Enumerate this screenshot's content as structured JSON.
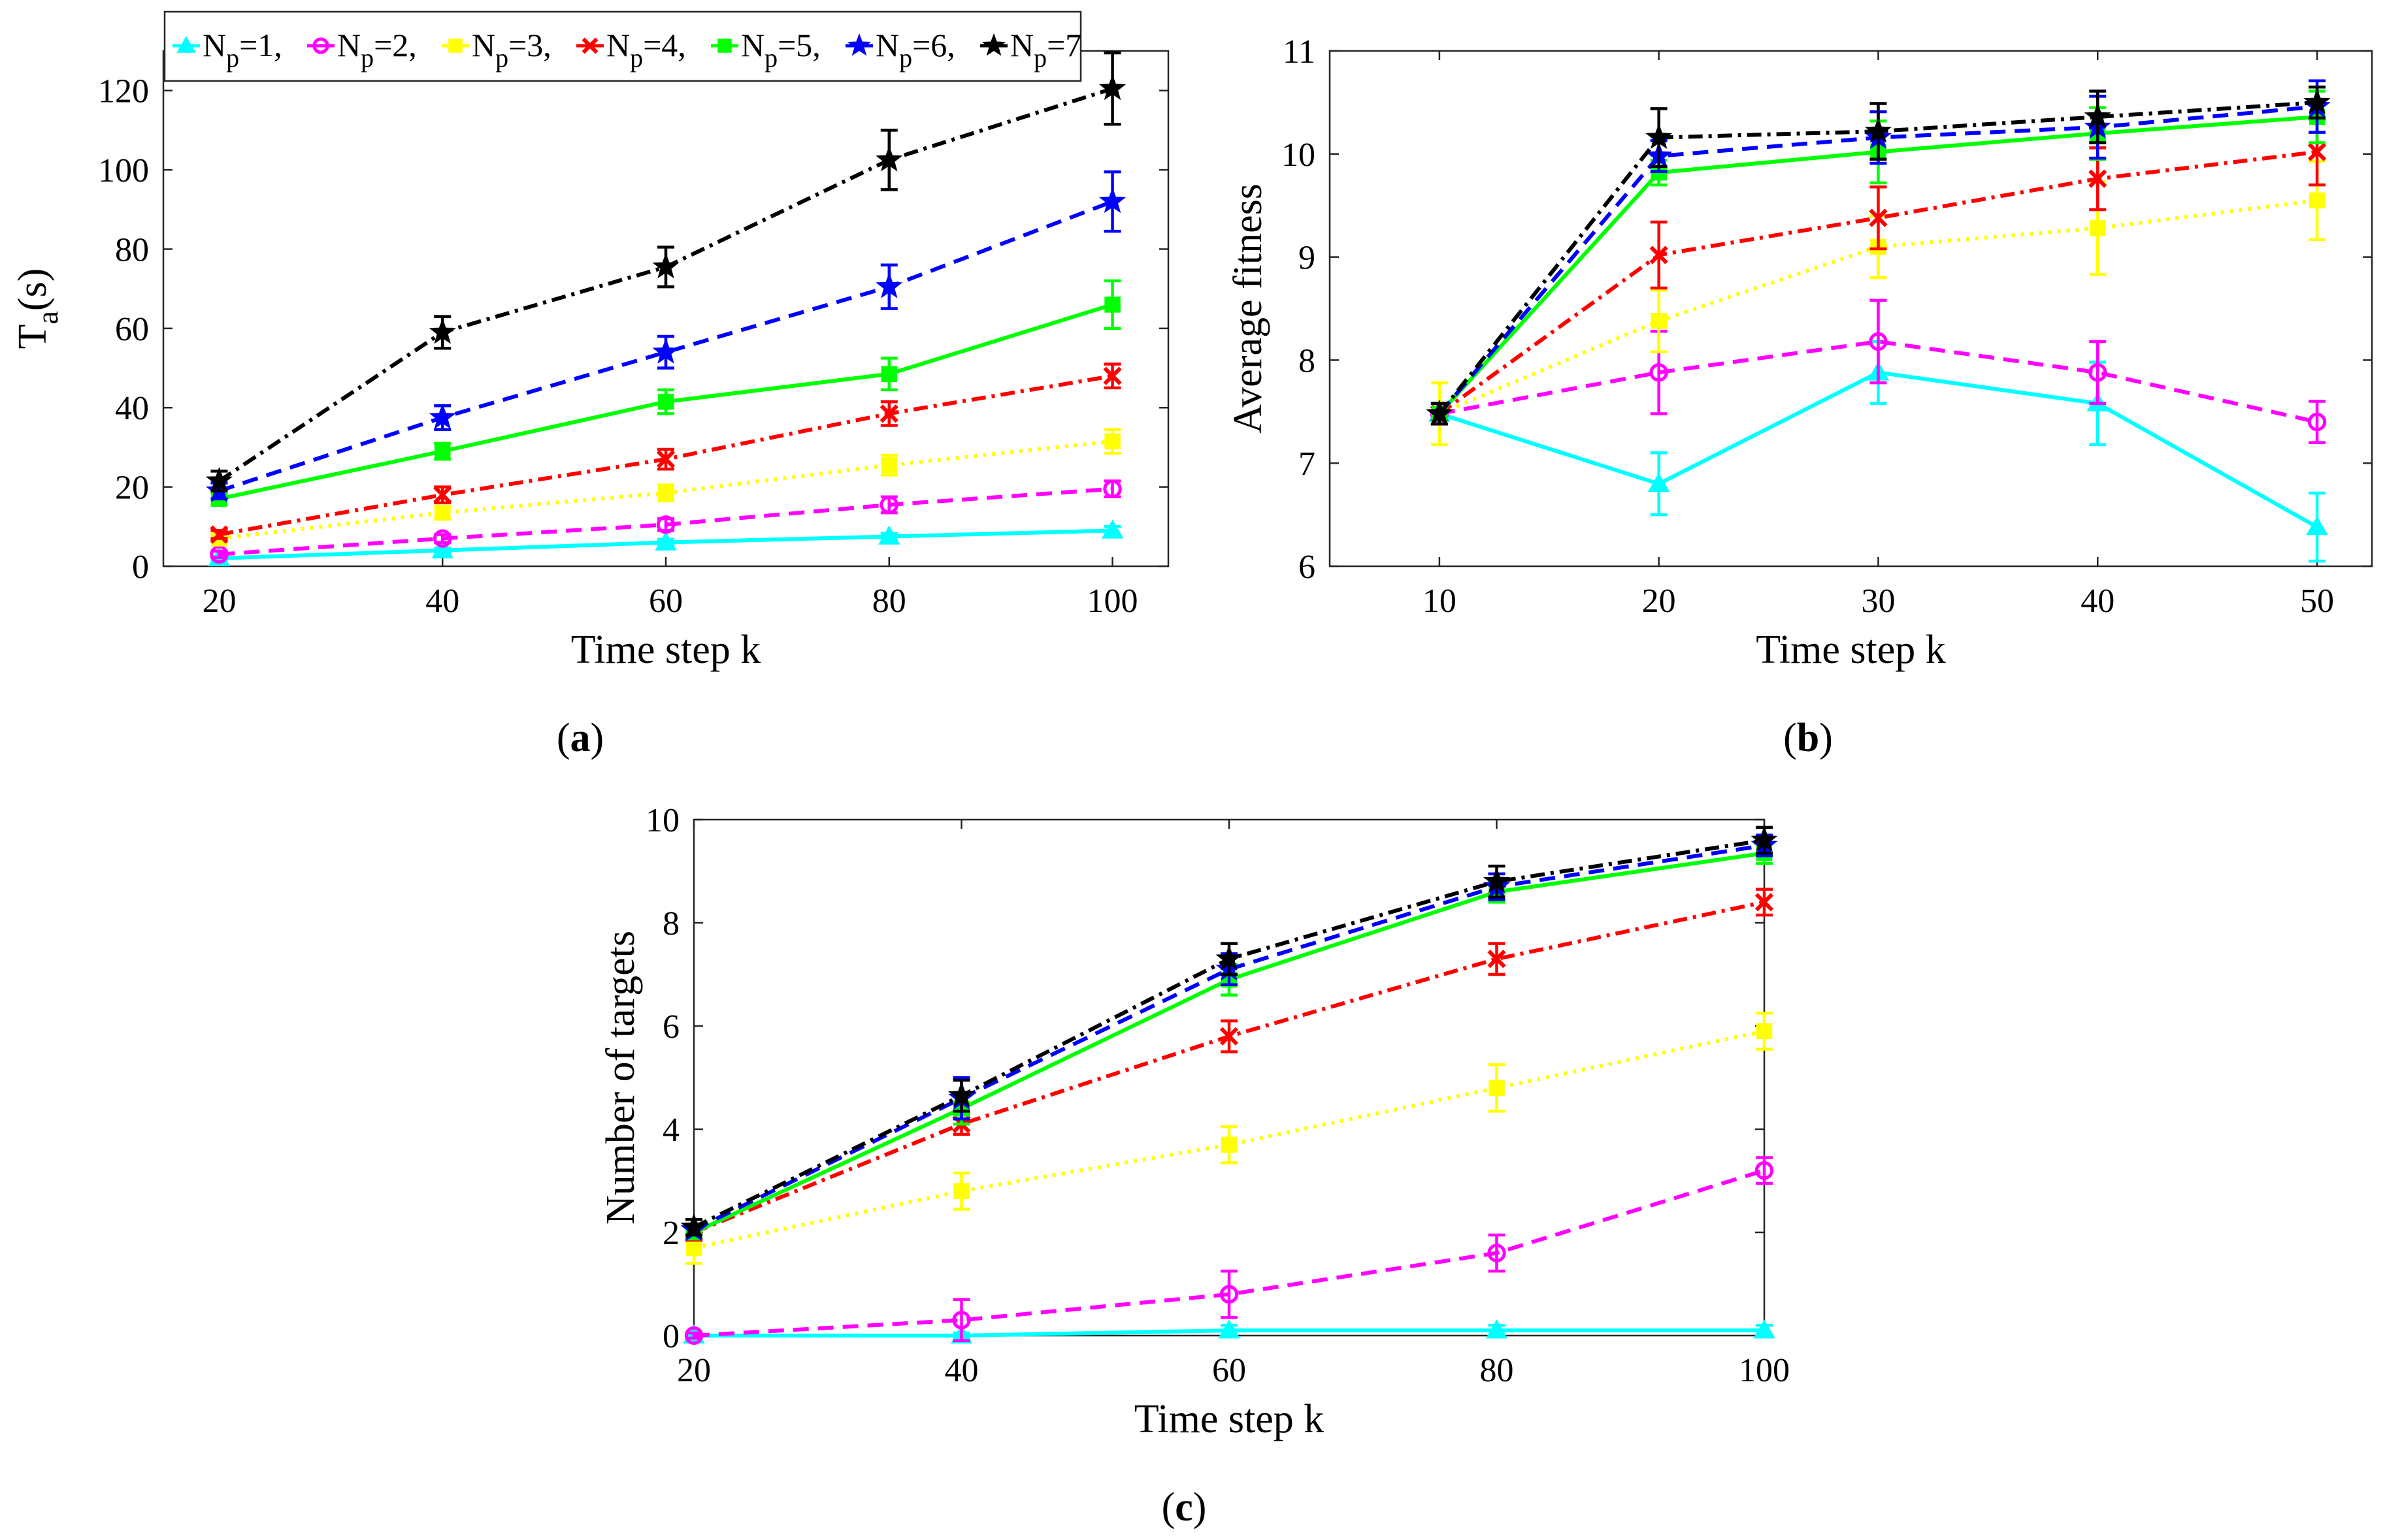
{
  "legend": {
    "entries": [
      {
        "key": "p1",
        "text": "N",
        "sub": "p",
        "suffix": "=1,"
      },
      {
        "key": "p2",
        "text": "N",
        "sub": "p",
        "suffix": "=2,"
      },
      {
        "key": "p3",
        "text": "N",
        "sub": "p",
        "suffix": "=3,"
      },
      {
        "key": "p4",
        "text": "N",
        "sub": "p",
        "suffix": "=4,"
      },
      {
        "key": "p5",
        "text": "N",
        "sub": "p",
        "suffix": "=5,"
      },
      {
        "key": "p6",
        "text": "N",
        "sub": "p",
        "suffix": "=6,"
      },
      {
        "key": "p7",
        "text": "N",
        "sub": "p",
        "suffix": "=7"
      }
    ]
  },
  "styles": {
    "p1": {
      "color": "#00FFFF",
      "dash": "",
      "marker": "triangle"
    },
    "p2": {
      "color": "#FF00FF",
      "dash": "24 14",
      "marker": "circle"
    },
    "p3": {
      "color": "#FFFF00",
      "dash": "5 9",
      "marker": "square"
    },
    "p4": {
      "color": "#FF0000",
      "dash": "22 9 5 9",
      "marker": "x-mark"
    },
    "p5": {
      "color": "#00FF00",
      "dash": "",
      "marker": "square"
    },
    "p6": {
      "color": "#0000FF",
      "dash": "24 14",
      "marker": "star"
    },
    "p7": {
      "color": "#000000",
      "dash": "22 9 5 9",
      "marker": "star"
    }
  },
  "chart_data": [
    {
      "id": "a",
      "type": "line",
      "caption_letter": "a",
      "xlabel": "Time step k",
      "ylabel_main": "T",
      "ylabel_sub": "a",
      "ylabel_suffix": "(s)",
      "xlim": [
        15,
        105
      ],
      "ylim": [
        0,
        130
      ],
      "xticks": [
        20,
        40,
        60,
        80,
        100
      ],
      "yticks": [
        0,
        20,
        40,
        60,
        80,
        100,
        120
      ],
      "x": [
        20,
        40,
        60,
        80,
        100
      ],
      "series": [
        {
          "key": "p1",
          "name": "Np=1",
          "values": [
            2,
            4,
            6,
            7.5,
            9
          ],
          "err": [
            0.5,
            0.6,
            0.8,
            0.8,
            1
          ]
        },
        {
          "key": "p2",
          "name": "Np=2",
          "values": [
            3,
            7,
            10.5,
            15.5,
            19.5
          ],
          "err": [
            0.8,
            1,
            1.5,
            2,
            2
          ]
        },
        {
          "key": "p3",
          "name": "Np=3",
          "values": [
            7,
            13.5,
            18.5,
            25.5,
            31.5
          ],
          "err": [
            1,
            1.5,
            2,
            2.5,
            3
          ]
        },
        {
          "key": "p4",
          "name": "Np=4",
          "values": [
            8,
            18,
            27,
            38.5,
            48
          ],
          "err": [
            1,
            2,
            2.5,
            3,
            3
          ]
        },
        {
          "key": "p5",
          "name": "Np=5",
          "values": [
            17,
            29,
            41.5,
            48.5,
            66
          ],
          "err": [
            1.5,
            2,
            3,
            4,
            6
          ]
        },
        {
          "key": "p6",
          "name": "Np=6",
          "values": [
            19,
            37.5,
            54,
            70.5,
            92
          ],
          "err": [
            2,
            3,
            4,
            5.5,
            7.5
          ]
        },
        {
          "key": "p7",
          "name": "Np=7",
          "values": [
            21.5,
            59,
            75.5,
            102.5,
            120.5
          ],
          "err": [
            2.5,
            4,
            5,
            7.5,
            9
          ]
        }
      ]
    },
    {
      "id": "b",
      "type": "line",
      "caption_letter": "b",
      "xlabel": "Time step k",
      "ylabel_main": "Average fitness",
      "ylabel_sub": "",
      "ylabel_suffix": "",
      "xlim": [
        5,
        52.5
      ],
      "ylim": [
        6,
        11
      ],
      "xticks": [
        10,
        20,
        30,
        40,
        50
      ],
      "yticks": [
        6,
        7,
        8,
        9,
        10,
        11
      ],
      "x": [
        10,
        20,
        30,
        40,
        50
      ],
      "series": [
        {
          "key": "p1",
          "name": "Np=1",
          "values": [
            7.48,
            6.8,
            7.88,
            7.58,
            6.38
          ],
          "err": [
            0.1,
            0.3,
            0.3,
            0.4,
            0.33
          ]
        },
        {
          "key": "p2",
          "name": "Np=2",
          "values": [
            7.48,
            7.88,
            8.18,
            7.88,
            7.4
          ],
          "err": [
            0.1,
            0.4,
            0.4,
            0.3,
            0.2
          ]
        },
        {
          "key": "p3",
          "name": "Np=3",
          "values": [
            7.48,
            8.38,
            9.1,
            9.28,
            9.55
          ],
          "err": [
            0.3,
            0.3,
            0.3,
            0.45,
            0.38
          ]
        },
        {
          "key": "p4",
          "name": "Np=4",
          "values": [
            7.48,
            9.02,
            9.38,
            9.76,
            10.02
          ],
          "err": [
            0.1,
            0.32,
            0.3,
            0.3,
            0.32
          ]
        },
        {
          "key": "p5",
          "name": "Np=5",
          "values": [
            7.48,
            9.82,
            10.02,
            10.2,
            10.36
          ],
          "err": [
            0.1,
            0.12,
            0.3,
            0.25,
            0.25
          ]
        },
        {
          "key": "p6",
          "name": "Np=6",
          "values": [
            7.48,
            9.98,
            10.16,
            10.26,
            10.46
          ],
          "err": [
            0.1,
            0.15,
            0.25,
            0.3,
            0.25
          ]
        },
        {
          "key": "p7",
          "name": "Np=7",
          "values": [
            7.48,
            10.16,
            10.22,
            10.36,
            10.5
          ],
          "err": [
            0.1,
            0.28,
            0.27,
            0.25,
            0.15
          ]
        }
      ]
    },
    {
      "id": "c",
      "type": "line",
      "caption_letter": "c",
      "xlabel": "Time step k",
      "ylabel_main": "Number of targets",
      "ylabel_sub": "",
      "ylabel_suffix": "",
      "xlim": [
        20,
        100
      ],
      "ylim": [
        0,
        10
      ],
      "xticks": [
        20,
        40,
        60,
        80,
        100
      ],
      "yticks": [
        0,
        2,
        4,
        6,
        8,
        10
      ],
      "x": [
        20,
        40,
        60,
        80,
        100
      ],
      "series": [
        {
          "key": "p1",
          "name": "Np=1",
          "values": [
            0,
            0,
            0.1,
            0.1,
            0.1
          ],
          "err": [
            0.05,
            0.05,
            0.1,
            0.1,
            0.1
          ]
        },
        {
          "key": "p2",
          "name": "Np=2",
          "values": [
            0,
            0.3,
            0.8,
            1.6,
            3.2
          ],
          "err": [
            0.05,
            0.4,
            0.45,
            0.35,
            0.25
          ]
        },
        {
          "key": "p3",
          "name": "Np=3",
          "values": [
            1.7,
            2.8,
            3.7,
            4.8,
            5.9
          ],
          "err": [
            0.3,
            0.35,
            0.35,
            0.45,
            0.35
          ]
        },
        {
          "key": "p4",
          "name": "Np=4",
          "values": [
            2,
            4.1,
            5.8,
            7.3,
            8.4
          ],
          "err": [
            0.15,
            0.2,
            0.3,
            0.3,
            0.25
          ]
        },
        {
          "key": "p5",
          "name": "Np=5",
          "values": [
            2,
            4.4,
            6.9,
            8.6,
            9.35
          ],
          "err": [
            0.1,
            0.3,
            0.3,
            0.2,
            0.2
          ]
        },
        {
          "key": "p6",
          "name": "Np=6",
          "values": [
            2.05,
            4.6,
            7.1,
            8.7,
            9.5
          ],
          "err": [
            0.1,
            0.4,
            0.3,
            0.25,
            0.2
          ]
        },
        {
          "key": "p7",
          "name": "Np=7",
          "values": [
            2.1,
            4.65,
            7.3,
            8.8,
            9.6
          ],
          "err": [
            0.15,
            0.3,
            0.3,
            0.3,
            0.25
          ]
        }
      ]
    }
  ]
}
